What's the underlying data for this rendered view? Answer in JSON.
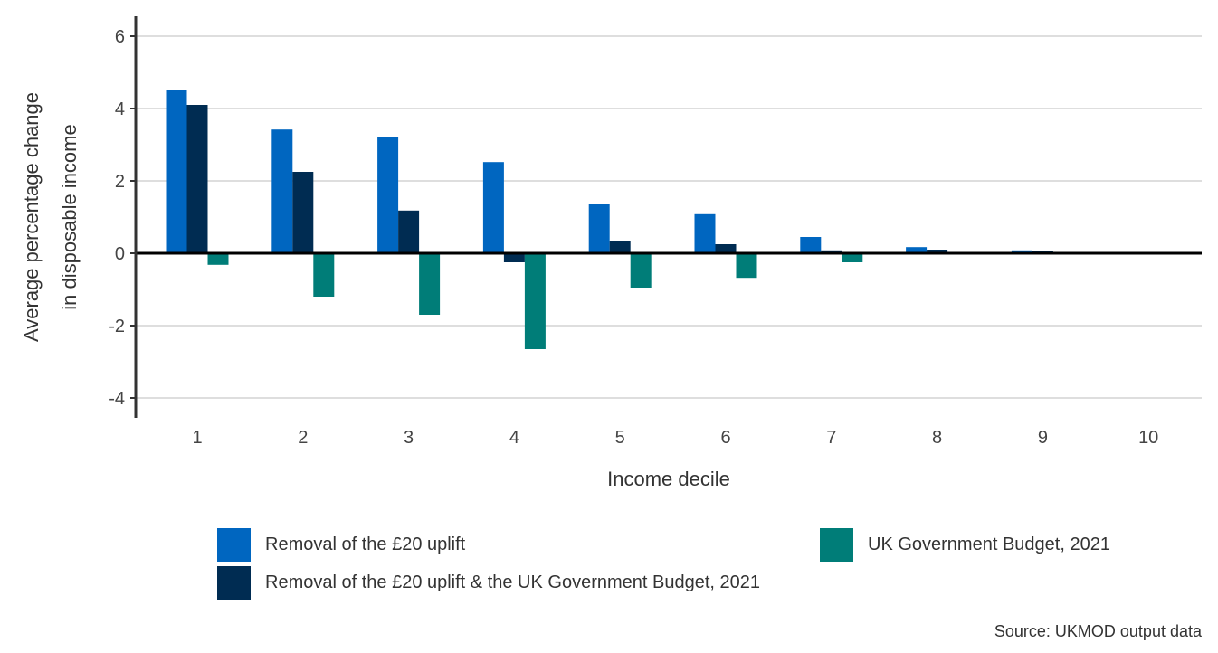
{
  "chart_data": {
    "type": "bar",
    "xlabel": "Income decile",
    "ylabel": [
      "Average percentage change",
      "in disposable income"
    ],
    "categories": [
      "1",
      "2",
      "3",
      "4",
      "5",
      "6",
      "7",
      "8",
      "9",
      "10"
    ],
    "ylim": [
      -4.5,
      6.5
    ],
    "yticks": [
      6,
      4,
      2,
      0,
      -2,
      -4
    ],
    "ytick_labels": [
      "6",
      "4",
      "2",
      "0",
      "-2",
      "-4"
    ],
    "grid": true,
    "series": [
      {
        "name": "Removal of the £20 uplift",
        "color": "#0066c0",
        "values": [
          4.5,
          3.42,
          3.2,
          2.52,
          1.35,
          1.08,
          0.45,
          0.17,
          0.08,
          0.0
        ]
      },
      {
        "name": "Removal of the £20 uplift & the UK Government Budget, 2021",
        "color": "#002c52",
        "values": [
          4.1,
          2.25,
          1.18,
          -0.25,
          0.35,
          0.25,
          0.08,
          0.1,
          0.05,
          0.0
        ]
      },
      {
        "name": "UK Government Budget, 2021",
        "color": "#007d78",
        "values": [
          -0.32,
          -1.2,
          -1.7,
          -2.65,
          -0.95,
          -0.68,
          -0.25,
          -0.02,
          0.0,
          0.0
        ]
      }
    ]
  },
  "legend": [
    {
      "label": "Removal of the £20 uplift",
      "color": "#0066c0"
    },
    {
      "label": "Removal of the £20 uplift & the UK Government Budget, 2021",
      "color": "#002c52"
    },
    {
      "label": "UK Government Budget, 2021",
      "color": "#007d78"
    }
  ],
  "source": "Source: UKMOD output data"
}
